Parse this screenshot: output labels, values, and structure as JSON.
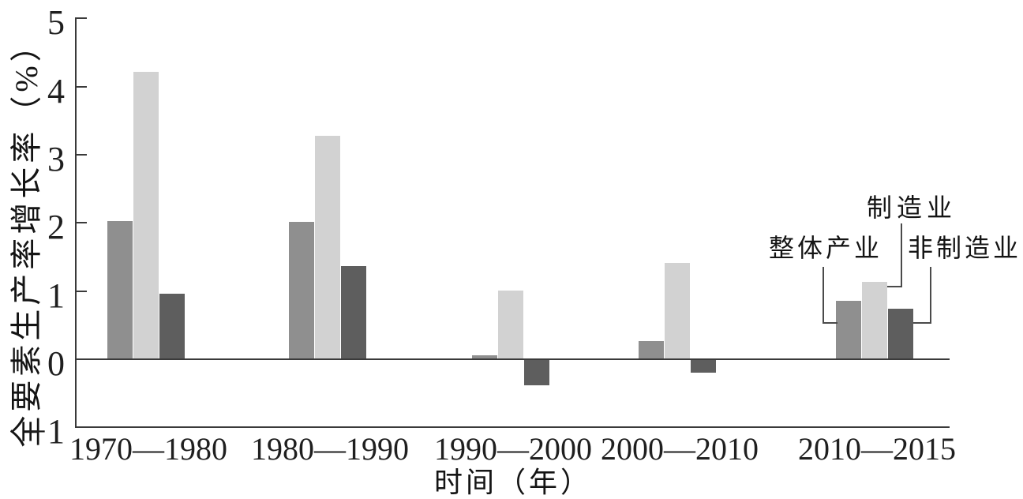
{
  "chart_data": {
    "type": "bar",
    "xlabel": "时间（年）",
    "ylabel": "全要素生产率增长率（%）",
    "categories": [
      "1970—1980",
      "1980—1990",
      "1990—2000",
      "2000—2010",
      "2010—2015"
    ],
    "series": [
      {
        "name": "整体产业",
        "color": "#8f8f8f",
        "values": [
          2.02,
          2.0,
          0.05,
          0.25,
          0.85
        ]
      },
      {
        "name": "制造业",
        "color": "#d2d2d2",
        "values": [
          4.2,
          3.27,
          1.0,
          1.4,
          1.12
        ]
      },
      {
        "name": "非制造业",
        "color": "#5e5e5e",
        "values": [
          0.95,
          1.35,
          -0.37,
          -0.18,
          0.73
        ]
      }
    ],
    "ylim": [
      -1,
      5
    ],
    "yticks": [
      5,
      4,
      3,
      2,
      1,
      0,
      -1
    ],
    "ytick_labels": [
      "5",
      "4",
      "3",
      "2",
      "1",
      "0",
      "−1"
    ],
    "grid": false,
    "legend_position": "callout annotations over last group",
    "annotations": [
      {
        "label": "整体产业",
        "target_series": 0,
        "target_category": "2010—2015"
      },
      {
        "label": "制造业",
        "target_series": 1,
        "target_category": "2010—2015"
      },
      {
        "label": "非制造业",
        "target_series": 2,
        "target_category": "2010—2015"
      }
    ]
  },
  "colors": {
    "background": "#ffffff",
    "axis": "#3a3a3a",
    "callout_line": "#4a4a4a",
    "text": "#1f1f1f"
  }
}
